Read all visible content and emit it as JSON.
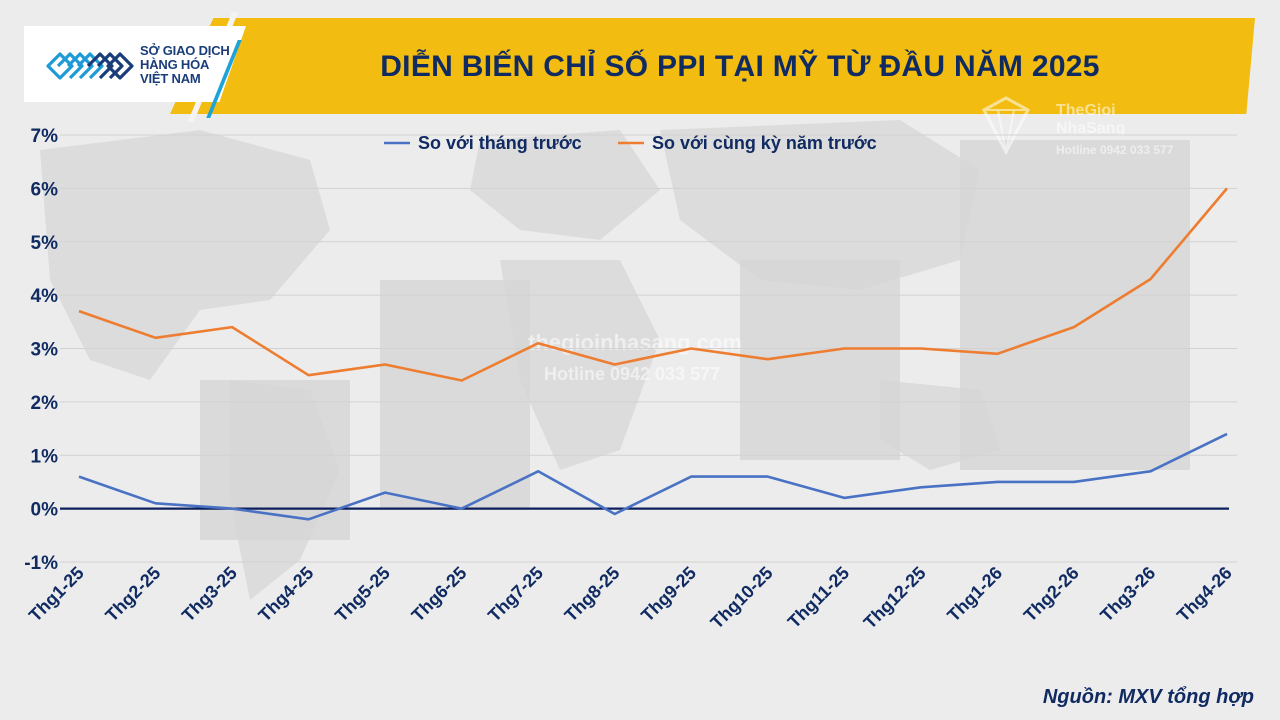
{
  "header": {
    "logo_lines": [
      "SỞ GIAO DỊCH",
      "HÀNG HÓA",
      "VIỆT NAM"
    ],
    "title": "DIỄN BIẾN CHỈ SỐ PPI TẠI MỸ TỪ ĐẦU NĂM 2025"
  },
  "watermark": {
    "brand_line1": "TheGioi",
    "brand_line2": "NhaSang",
    "hotline_corner": "Hotline 0942 033 577",
    "center_site": "thegioinhasang.com",
    "center_hotline": "Hotline 0942 033 577"
  },
  "source": "Nguồn: MXV tổng hợp",
  "colors": {
    "mom": "#4a72c4",
    "yoy": "#ed7d31",
    "zero_line": "#0d1f5c",
    "header": "#f2bd10",
    "text": "#102a62"
  },
  "chart_data": {
    "type": "line",
    "categories": [
      "Thg1-25",
      "Thg2-25",
      "Thg3-25",
      "Thg4-25",
      "Thg5-25",
      "Thg6-25",
      "Thg7-25",
      "Thg8-25",
      "Thg9-25",
      "Thg10-25",
      "Thg11-25",
      "Thg12-25",
      "Thg1-26",
      "Thg2-26",
      "Thg3-26",
      "Thg4-26"
    ],
    "series": [
      {
        "name": "So với tháng trước",
        "color": "#4a72c4",
        "values": [
          0.6,
          0.1,
          0.0,
          -0.2,
          0.3,
          0.0,
          0.7,
          -0.1,
          0.6,
          0.6,
          0.2,
          0.4,
          0.5,
          0.5,
          0.7,
          1.4
        ]
      },
      {
        "name": "So với cùng kỳ năm trước",
        "color": "#ed7d31",
        "values": [
          3.7,
          3.2,
          3.4,
          2.5,
          2.7,
          2.4,
          3.1,
          2.7,
          3.0,
          2.8,
          3.0,
          3.0,
          2.9,
          3.4,
          4.3,
          6.0
        ]
      }
    ],
    "yticks": [
      "7%",
      "6%",
      "5%",
      "4%",
      "3%",
      "2%",
      "1%",
      "0%",
      "-1%"
    ],
    "ytick_values": [
      7,
      6,
      5,
      4,
      3,
      2,
      1,
      0,
      -1
    ],
    "ylim": [
      -1,
      7
    ],
    "grid": true,
    "legend_position": "top"
  }
}
